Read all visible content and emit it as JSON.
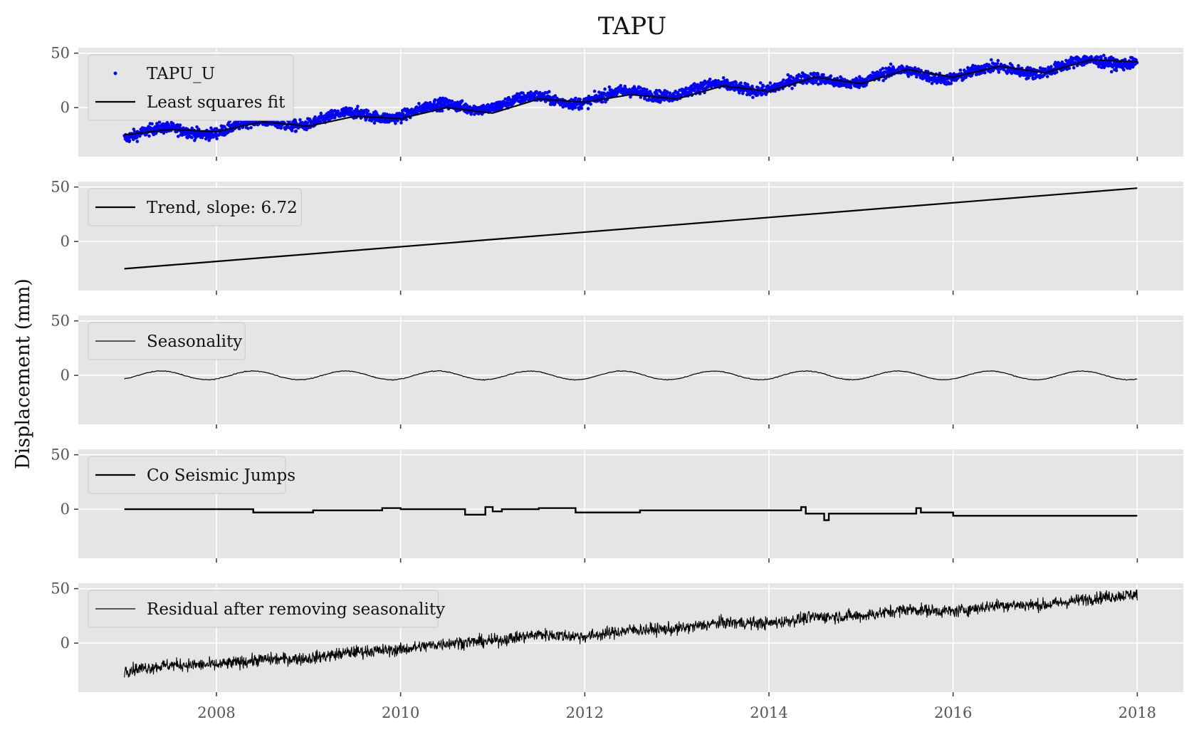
{
  "figure": {
    "title": "TAPU",
    "ylabel": "Displacement (mm)"
  },
  "chart_data": [
    {
      "type": "scatter+line",
      "panel": 1,
      "xlim": [
        2006.5,
        2018.5
      ],
      "ylim": [
        -45,
        55
      ],
      "yticks": [
        0,
        50
      ],
      "xticks": [
        2008,
        2010,
        2012,
        2014,
        2016,
        2018
      ],
      "legend_position": "upper-left",
      "series": [
        {
          "name": "TAPU_U",
          "kind": "scatter",
          "color": "#0000ff",
          "x": [
            2007.0,
            2007.5,
            2008.0,
            2008.5,
            2009.0,
            2009.5,
            2010.0,
            2010.5,
            2011.0,
            2011.5,
            2012.0,
            2012.5,
            2013.0,
            2013.5,
            2014.0,
            2014.5,
            2015.0,
            2015.5,
            2016.0,
            2016.5,
            2017.0,
            2017.5,
            2018.0
          ],
          "y": [
            -25,
            -22,
            -20,
            -15,
            -12,
            -8,
            -5,
            0,
            3,
            7,
            8,
            12,
            15,
            18,
            20,
            24,
            27,
            31,
            30,
            34,
            36,
            40,
            45
          ]
        },
        {
          "name": "Least squares fit",
          "kind": "line",
          "color": "#000000",
          "x": [
            2007.0,
            2007.5,
            2008.0,
            2008.5,
            2009.0,
            2009.5,
            2010.0,
            2010.5,
            2011.0,
            2011.5,
            2012.0,
            2012.5,
            2013.0,
            2013.5,
            2014.0,
            2014.5,
            2015.0,
            2015.5,
            2016.0,
            2016.5,
            2017.0,
            2017.5,
            2018.0
          ],
          "y": [
            -25,
            -20,
            -22,
            -13,
            -17,
            -8,
            -10,
            0,
            -5,
            8,
            5,
            12,
            8,
            20,
            15,
            28,
            22,
            35,
            28,
            38,
            32,
            44,
            42
          ]
        }
      ]
    },
    {
      "type": "line",
      "panel": 2,
      "xlim": [
        2006.5,
        2018.5
      ],
      "ylim": [
        -45,
        55
      ],
      "yticks": [
        0,
        50
      ],
      "xticks": [
        2008,
        2010,
        2012,
        2014,
        2016,
        2018
      ],
      "legend_position": "upper-left",
      "series": [
        {
          "name": "Trend, slope: 6.72",
          "color": "#000000",
          "x": [
            2007.0,
            2018.0
          ],
          "y": [
            -25,
            49
          ]
        }
      ]
    },
    {
      "type": "line",
      "panel": 3,
      "xlim": [
        2006.5,
        2018.5
      ],
      "ylim": [
        -45,
        55
      ],
      "yticks": [
        0,
        50
      ],
      "xticks": [
        2008,
        2010,
        2012,
        2014,
        2016,
        2018
      ],
      "legend_position": "upper-left",
      "series": [
        {
          "name": "Seasonality",
          "color": "#000000",
          "amplitude": 4,
          "period_years": 1,
          "peak_phase_year": 2007.4,
          "x_start": 2007.0,
          "x_end": 2018.0
        }
      ]
    },
    {
      "type": "step",
      "panel": 4,
      "xlim": [
        2006.5,
        2018.5
      ],
      "ylim": [
        -45,
        55
      ],
      "yticks": [
        0,
        50
      ],
      "xticks": [
        2008,
        2010,
        2012,
        2014,
        2016,
        2018
      ],
      "legend_position": "upper-left",
      "series": [
        {
          "name": "Co Seismic Jumps",
          "color": "#000000",
          "x": [
            2007.0,
            2008.4,
            2009.05,
            2009.8,
            2010.0,
            2010.7,
            2010.92,
            2011.0,
            2011.1,
            2011.5,
            2011.9,
            2012.6,
            2014.35,
            2014.4,
            2014.6,
            2014.65,
            2015.6,
            2015.65,
            2016.0,
            2018.0
          ],
          "y": [
            0,
            -3,
            -1,
            1,
            0,
            -5,
            2,
            -2,
            0,
            1,
            -3,
            -1,
            2,
            -4,
            -10,
            -4,
            1,
            -3,
            -6,
            -6
          ]
        }
      ]
    },
    {
      "type": "line",
      "panel": 5,
      "xlim": [
        2006.5,
        2018.5
      ],
      "ylim": [
        -45,
        55
      ],
      "yticks": [
        0,
        50
      ],
      "xticks": [
        2008,
        2010,
        2012,
        2014,
        2016,
        2018
      ],
      "legend_position": "upper-left",
      "series": [
        {
          "name": "Residual after removing seasonality",
          "color": "#000000",
          "x": [
            2007.0,
            2007.5,
            2008.0,
            2008.5,
            2009.0,
            2009.5,
            2010.0,
            2010.5,
            2011.0,
            2011.5,
            2012.0,
            2012.5,
            2013.0,
            2013.5,
            2014.0,
            2014.5,
            2015.0,
            2015.5,
            2016.0,
            2016.5,
            2017.0,
            2017.5,
            2018.0
          ],
          "y": [
            -25,
            -20,
            -20,
            -15,
            -14,
            -8,
            -6,
            0,
            2,
            8,
            6,
            12,
            13,
            19,
            18,
            24,
            25,
            31,
            29,
            35,
            35,
            41,
            45
          ]
        }
      ]
    }
  ]
}
